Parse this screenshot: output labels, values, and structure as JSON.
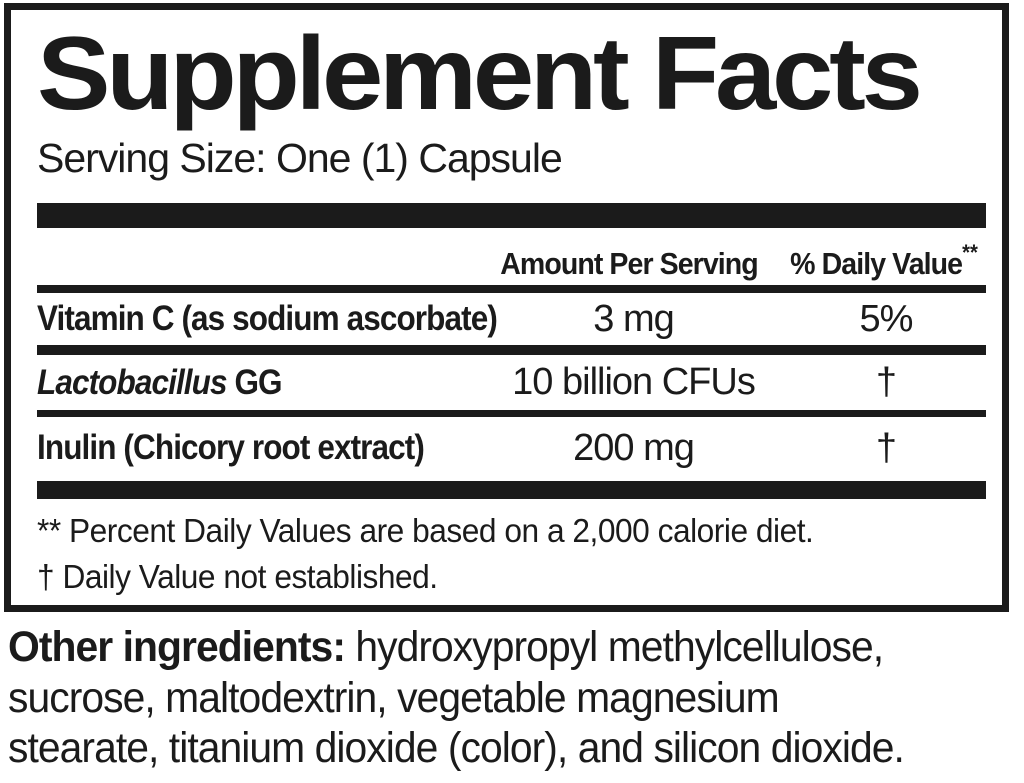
{
  "title": "Supplement Facts",
  "serving_size": "Serving Size: One (1) Capsule",
  "table": {
    "headers": {
      "amount": "Amount Per Serving",
      "dv": "% Daily Value",
      "dv_note": "**"
    },
    "rows": [
      {
        "name": "Vitamin C (as sodium ascorbate)",
        "amount": "3 mg",
        "dv": "5%"
      },
      {
        "name_italic": "Lactobacillus",
        "name_rest": " GG",
        "amount": "10 billion CFUs",
        "dv": "†"
      },
      {
        "name": "Inulin (Chicory root extract)",
        "amount": "200 mg",
        "dv": "†"
      }
    ]
  },
  "footnotes": [
    "** Percent Daily Values are based on a 2,000 calorie diet.",
    "† Daily Value not established."
  ],
  "other_ingredients": {
    "label": "Other ingredients:",
    "line1_rest": " hydroxypropyl methylcellulose,",
    "line2": "sucrose, maltodextrin, vegetable magnesium",
    "line3": "stearate, titanium dioxide (color), and silicon dioxide."
  },
  "colors": {
    "ink": "#1b1b1b",
    "background": "#ffffff"
  }
}
